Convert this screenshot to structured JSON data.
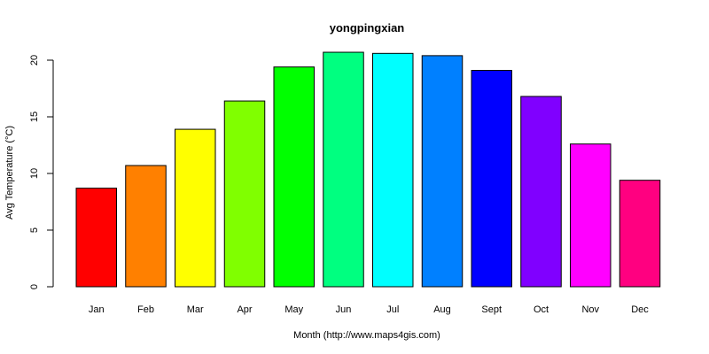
{
  "chart_data": {
    "type": "bar",
    "title": "yongpingxian",
    "xlabel": "Month (http://www.maps4gis.com)",
    "ylabel": "Avg Temperature (°C)",
    "categories": [
      "Jan",
      "Feb",
      "Mar",
      "Apr",
      "May",
      "Jun",
      "Jul",
      "Aug",
      "Sept",
      "Oct",
      "Nov",
      "Dec"
    ],
    "values": [
      8.7,
      10.7,
      13.9,
      16.4,
      19.4,
      20.7,
      20.6,
      20.4,
      19.1,
      16.8,
      12.6,
      9.4
    ],
    "colors": [
      "#FF0000",
      "#FF8000",
      "#FFFF00",
      "#80FF00",
      "#00FF00",
      "#00FF80",
      "#00FFFF",
      "#0080FF",
      "#0000FF",
      "#8000FF",
      "#FF00FF",
      "#FF0080"
    ],
    "yticks": [
      0,
      5,
      10,
      15,
      20
    ],
    "ylim": [
      0,
      21.5
    ],
    "grid": false,
    "legend": "none"
  }
}
